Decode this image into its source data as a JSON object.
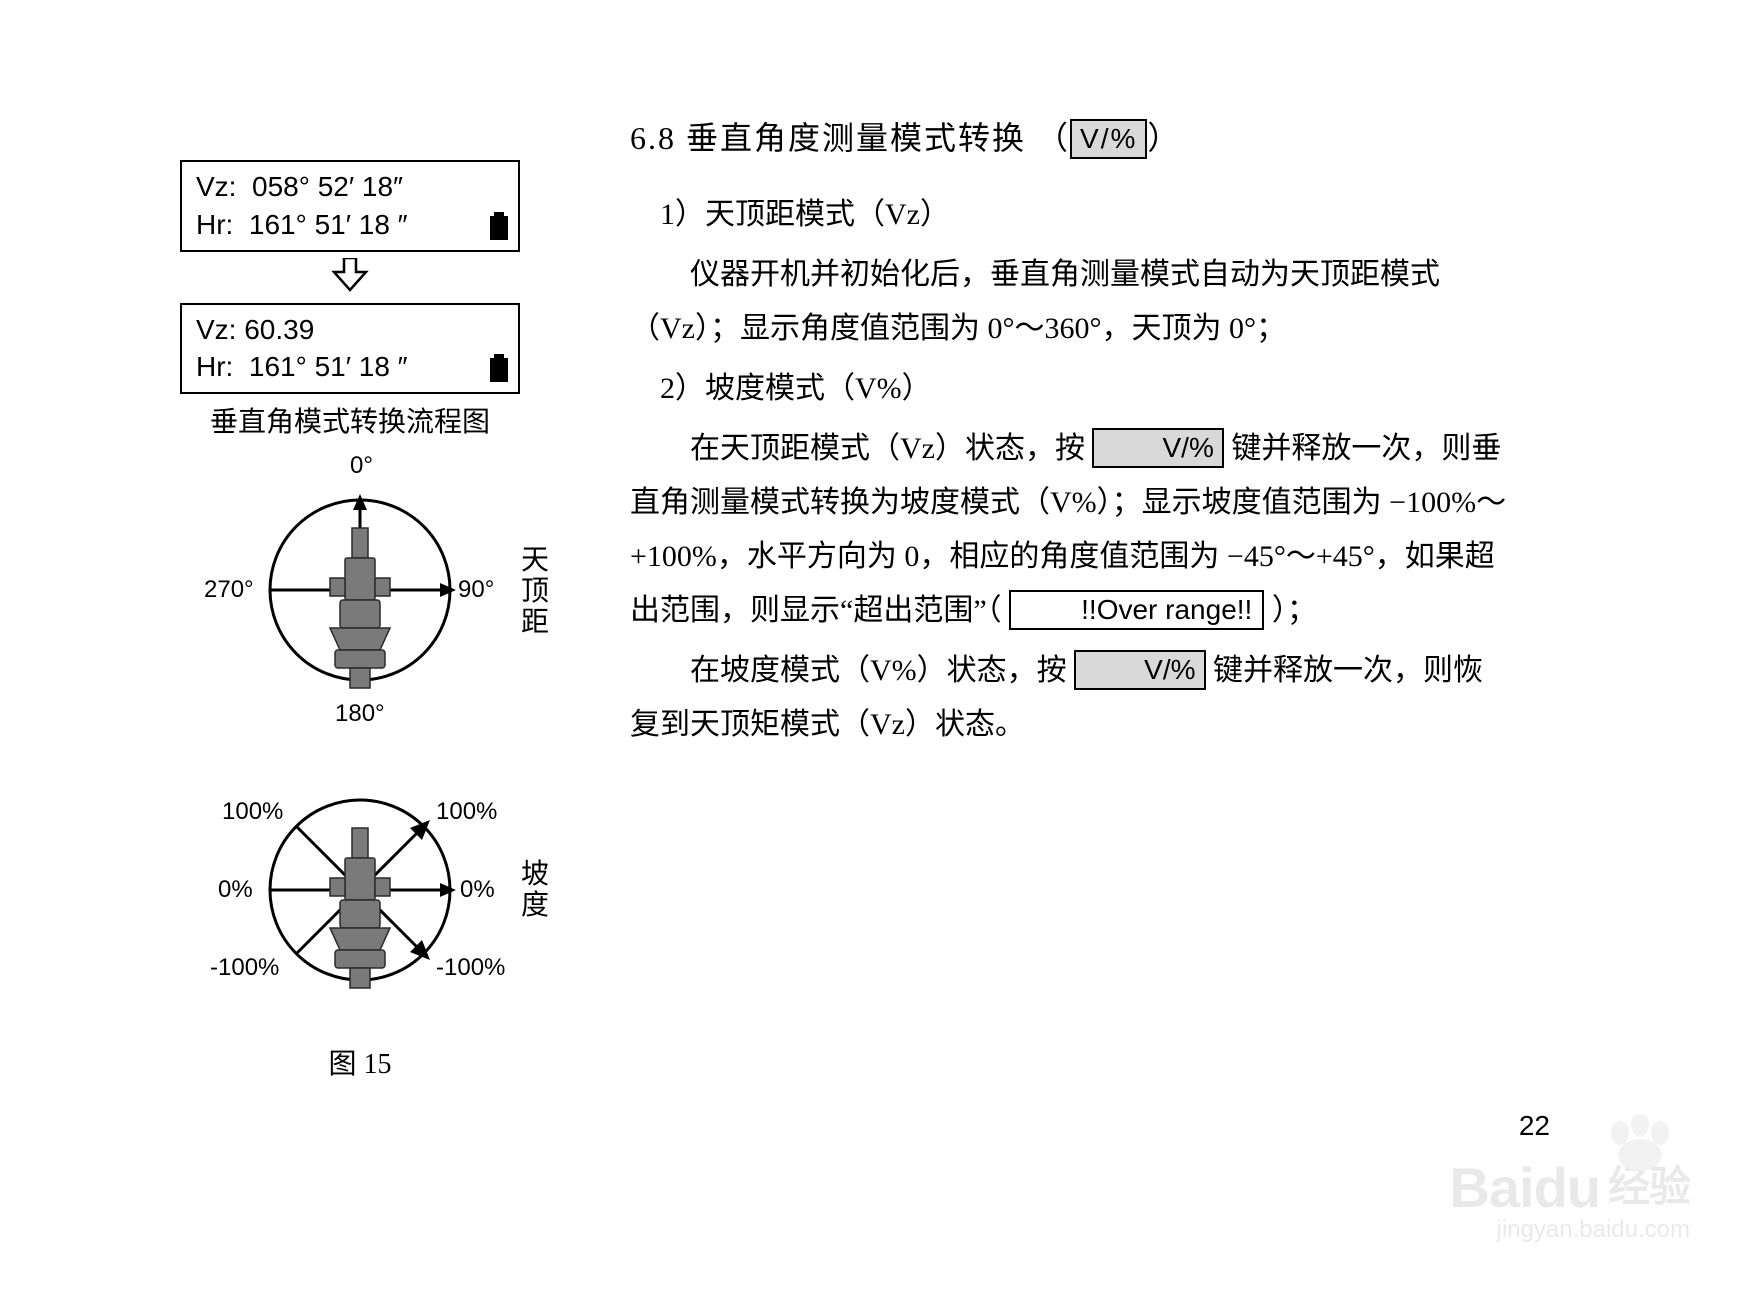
{
  "section": {
    "number": "6.8",
    "title": "垂直角度测量模式转换",
    "title_key": "V/%"
  },
  "lcd_before": {
    "line1": "Vz:  058° 52′ 18″",
    "line2": "Hr:  161° 51′ 18 ″"
  },
  "lcd_after": {
    "line1": "Vz: 60.39",
    "line2": "Hr:  161° 51′ 18 ″"
  },
  "flow_caption": "垂直角模式转换流程图",
  "diagram1": {
    "top": "0°",
    "right": "90°",
    "bottom": "180°",
    "left": "270°",
    "side": "天顶距"
  },
  "diagram2": {
    "tl": "100%",
    "tr": "100%",
    "ml": "0%",
    "mr": "0%",
    "bl": "-100%",
    "br": "-100%",
    "side": "坡度"
  },
  "figure_label": "图 15",
  "body": {
    "item1_head": "1）天顶距模式（Vz）",
    "item1_p1": "仪器开机并初始化后，垂直角测量模式自动为天顶距模式（Vz）；显示角度值范围为 0°～360°，天顶为 0°；",
    "item2_head": "2）坡度模式（V%）",
    "item2_p1a": "在天顶距模式（Vz）状态，按",
    "key_vpercent": "V/%",
    "item2_p1b": "键并释放一次，则垂直角测量模式转换为坡度模式（V%）；显示坡度值范围为 −100%～+100%，水平方向为 0，相应的角度值范围为 −45°～+45°，如果超出范围，则显示“超出范围”（",
    "over_range": "!!Over range!!",
    "item2_p1c": "）；",
    "item2_p2a": "在坡度模式（V%）状态，按",
    "item2_p2b": "键并释放一次，则恢复到天顶矩模式（Vz）状态。"
  },
  "page_number": "22",
  "watermark": {
    "brand": "Baidu",
    "cn": "经验",
    "url": "jingyan.baidu.com"
  }
}
